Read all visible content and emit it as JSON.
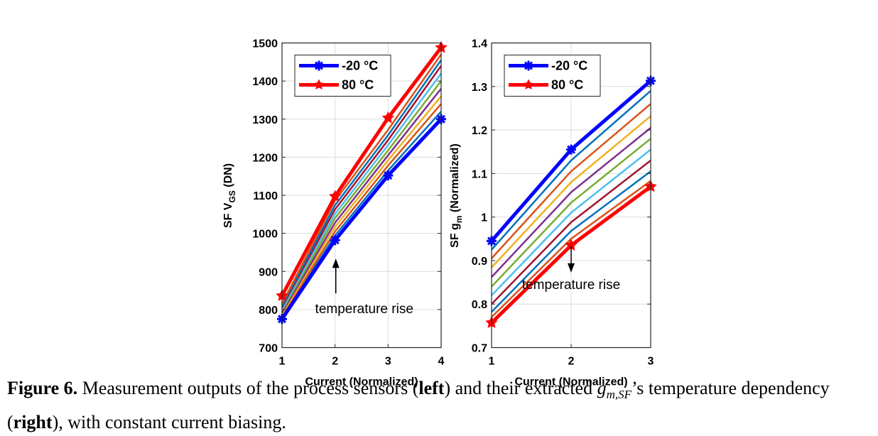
{
  "chart_data": [
    {
      "type": "line",
      "xlabel": "Current (Normalized)",
      "ylabel": "SF V",
      "ylabel_sub": "GS",
      "ylabel_unit": " (DN)",
      "xlim": [
        1,
        4
      ],
      "ylim": [
        700,
        1500
      ],
      "xticks": [
        "1",
        "2",
        "3",
        "4"
      ],
      "yticks": [
        "700",
        "800",
        "900",
        "1000",
        "1100",
        "1200",
        "1300",
        "1400",
        "1500"
      ],
      "grid": true,
      "legend_position": "top-left",
      "x": [
        1,
        2,
        3,
        4
      ],
      "series": [
        {
          "name": "-20 °C",
          "color": "#0000ff",
          "marker": "asterisk",
          "values": [
            775,
            982,
            1152,
            1300
          ]
        },
        {
          "color": "#0072bd",
          "values": [
            779,
            994,
            1165,
            1320
          ]
        },
        {
          "color": "#d95319",
          "values": [
            783,
            1005,
            1178,
            1340
          ]
        },
        {
          "color": "#edb120",
          "values": [
            788,
            1017,
            1192,
            1360
          ]
        },
        {
          "color": "#7e2f8e",
          "values": [
            792,
            1028,
            1205,
            1380
          ]
        },
        {
          "color": "#77ac30",
          "values": [
            797,
            1040,
            1218,
            1400
          ]
        },
        {
          "color": "#4dbeee",
          "values": [
            801,
            1051,
            1232,
            1420
          ]
        },
        {
          "color": "#a2142f",
          "values": [
            806,
            1063,
            1245,
            1440
          ]
        },
        {
          "color": "#0072bd",
          "values": [
            810,
            1074,
            1258,
            1455
          ]
        },
        {
          "color": "#d95319",
          "values": [
            815,
            1086,
            1272,
            1470
          ]
        },
        {
          "name": "80 °C",
          "color": "#ff0000",
          "marker": "star",
          "values": [
            836,
            1097,
            1303,
            1488
          ]
        }
      ],
      "annotations": [
        {
          "text": "temperature rise",
          "arrow": "up",
          "x": 2.55,
          "y": 790
        }
      ]
    },
    {
      "type": "line",
      "xlabel": "Current (Normalized)",
      "ylabel": "SF  g",
      "ylabel_sub": "m",
      "ylabel_unit": " (Normalized)",
      "xlim": [
        1,
        3
      ],
      "ylim": [
        0.7,
        1.4
      ],
      "xticks": [
        "1",
        "2",
        "3"
      ],
      "yticks": [
        "0.7",
        "0.8",
        "0.9",
        "1",
        "1.1",
        "1.2",
        "1.3",
        "1.4"
      ],
      "grid": true,
      "legend_position": "top-left",
      "x": [
        1,
        2,
        3
      ],
      "series": [
        {
          "name": "-20 °C",
          "color": "#0000ff",
          "marker": "asterisk",
          "values": [
            0.945,
            1.155,
            1.313
          ]
        },
        {
          "color": "#0072bd",
          "values": [
            0.925,
            1.13,
            1.29
          ]
        },
        {
          "color": "#d95319",
          "values": [
            0.905,
            1.105,
            1.26
          ]
        },
        {
          "color": "#edb120",
          "values": [
            0.884,
            1.08,
            1.232
          ]
        },
        {
          "color": "#7e2f8e",
          "values": [
            0.862,
            1.057,
            1.205
          ]
        },
        {
          "color": "#77ac30",
          "values": [
            0.84,
            1.033,
            1.18
          ]
        },
        {
          "color": "#4dbeee",
          "values": [
            0.82,
            1.01,
            1.155
          ]
        },
        {
          "color": "#a2142f",
          "values": [
            0.8,
            0.988,
            1.13
          ]
        },
        {
          "color": "#0072bd",
          "values": [
            0.782,
            0.968,
            1.105
          ]
        },
        {
          "color": "#d95319",
          "values": [
            0.77,
            0.95,
            1.083
          ]
        },
        {
          "name": "80 °C",
          "color": "#ff0000",
          "marker": "star",
          "values": [
            0.757,
            0.935,
            1.07
          ]
        }
      ],
      "annotations": [
        {
          "text": "temperature rise",
          "arrow": "down",
          "x": 2.0,
          "y": 0.835
        }
      ]
    }
  ],
  "caption": {
    "label": "Figure 6.",
    "t1": " Measurement outputs of the process sensors (",
    "b1": "left",
    "t2": ") and their extracted ",
    "math_g": "g",
    "math_sub": "m,SF",
    "t3": "’s temperature dependency (",
    "b2": "right",
    "t4": "), with constant current biasing."
  }
}
